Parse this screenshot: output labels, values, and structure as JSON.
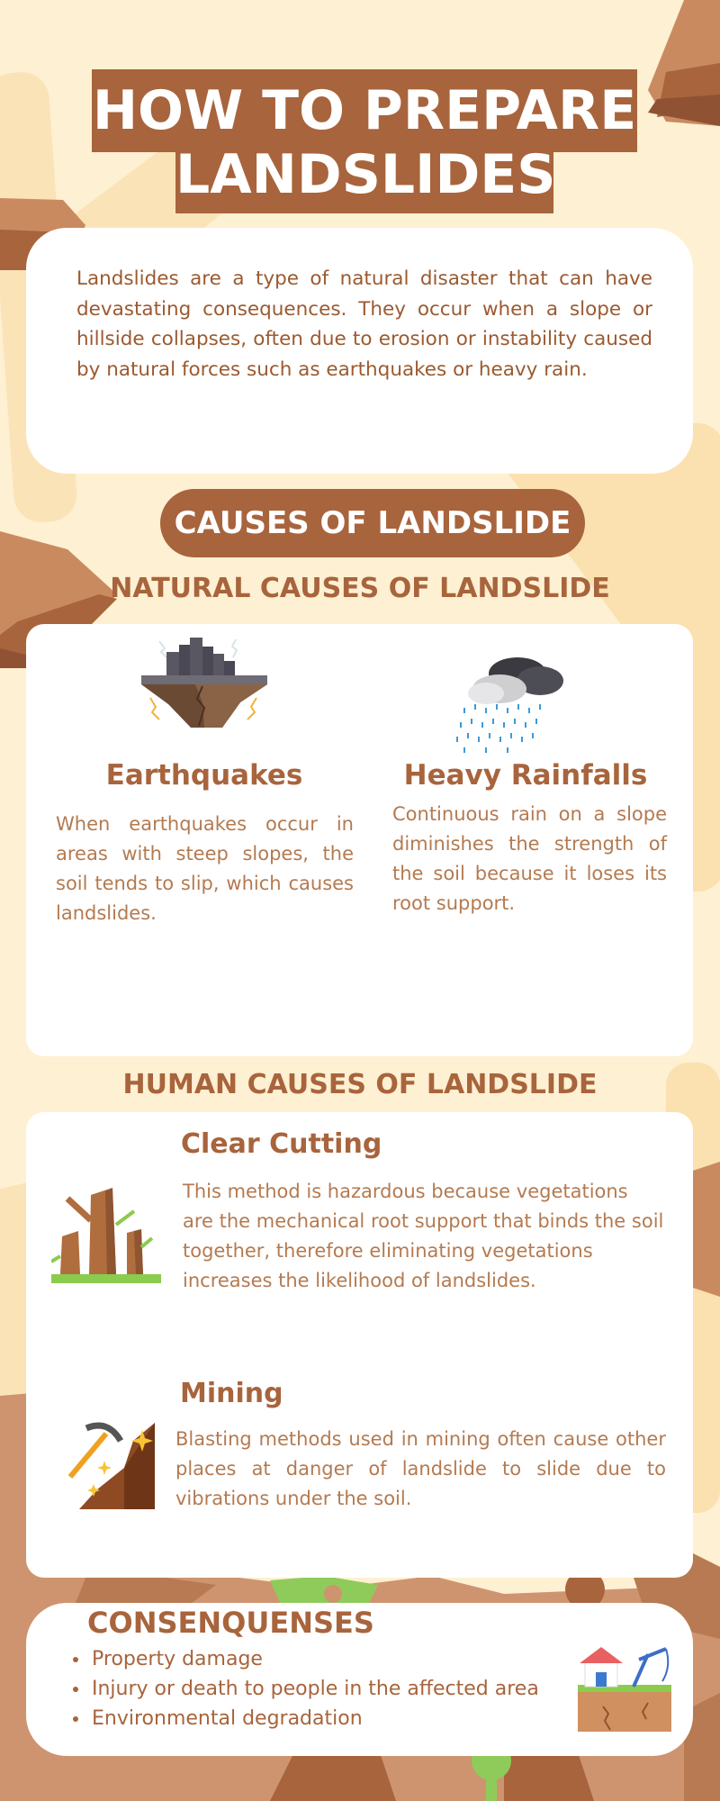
{
  "title": {
    "line1": "HOW TO PREPARE",
    "line2": "LANDSLIDES"
  },
  "intro": "Landslides are a type of natural disaster that can have devastating consequences. They occur when a slope or hillside collapses, often due to erosion or instability caused by natural forces such as earthquakes or heavy rain.",
  "causes": {
    "heading": "CAUSES OF LANDSLIDE",
    "natural_heading": "NATURAL CAUSES OF LANDSLIDE",
    "natural": [
      {
        "title": "Earthquakes",
        "text": "When earthquakes occur in areas with steep slopes, the soil tends to slip, which causes landslides."
      },
      {
        "title": "Heavy Rainfalls",
        "text": "Continuous rain on a slope diminishes the strength of the soil because it loses its root support."
      }
    ],
    "human_heading": "HUMAN CAUSES OF LANDSLIDE",
    "human": [
      {
        "title": "Clear Cutting",
        "text": "This method is hazardous because vegetations are the mechanical root support that binds the soil together, therefore eliminating vegetations increases the likelihood of landslides."
      },
      {
        "title": "Mining",
        "text": "Blasting methods used in mining often cause other places at danger of landslide to slide due to vibrations under the soil."
      }
    ]
  },
  "consequences": {
    "heading": "CONSENQUENSES",
    "items": [
      "Property damage",
      "Injury or death to people in the affected area",
      "Environmental degradation"
    ]
  },
  "colors": {
    "background": "#FEF0D2",
    "brown": "#A8643C",
    "text_brown": "#B47A50",
    "card": "#FFFFFF"
  }
}
